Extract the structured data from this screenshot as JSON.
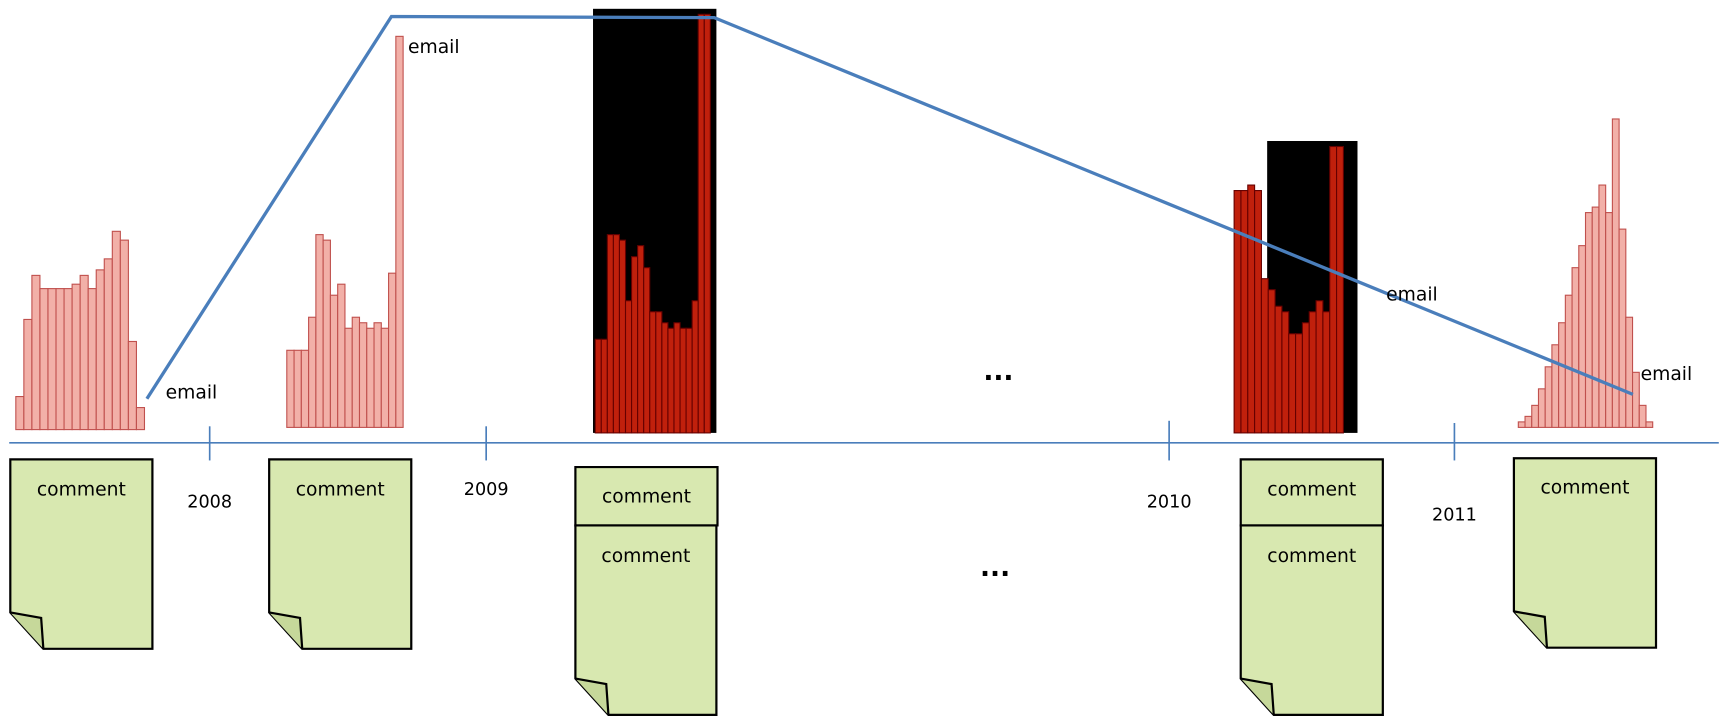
{
  "timeline": {
    "years": [
      "2008",
      "2009",
      "2010",
      "2011"
    ]
  },
  "emails": [
    "email",
    "email",
    "email",
    "email"
  ],
  "comments": [
    "comment",
    "comment",
    "comment",
    "comment",
    "comment",
    "comment",
    "comment"
  ],
  "ellipses": [
    "...",
    "..."
  ]
}
